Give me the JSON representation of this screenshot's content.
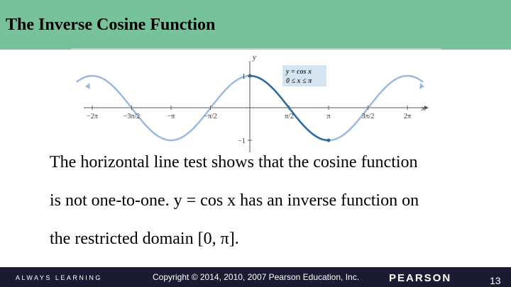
{
  "header": {
    "title": "The Inverse Cosine Function"
  },
  "figure": {
    "x_axis_label": "x",
    "y_axis_label": "y",
    "y_tick_labels": [
      "1",
      "−1"
    ],
    "x_tick_labels": [
      "−2π",
      "−3π/2",
      "−π",
      "−π/2",
      "π/2",
      "π",
      "3π/2",
      "2π"
    ],
    "legend": [
      "y = cos x",
      "0 ≤ x ≤ π"
    ]
  },
  "body": {
    "lines": [
      "The horizontal line test shows that the cosine function",
      "is not one-to-one.  y = cos x has an inverse function on",
      "the restricted domain [0, π]."
    ]
  },
  "footer": {
    "tagline": "ALWAYS LEARNING",
    "copyright": "Copyright © 2014, 2010, 2007 Pearson Education, Inc.",
    "brand": "PEARSON",
    "page": "13"
  }
}
